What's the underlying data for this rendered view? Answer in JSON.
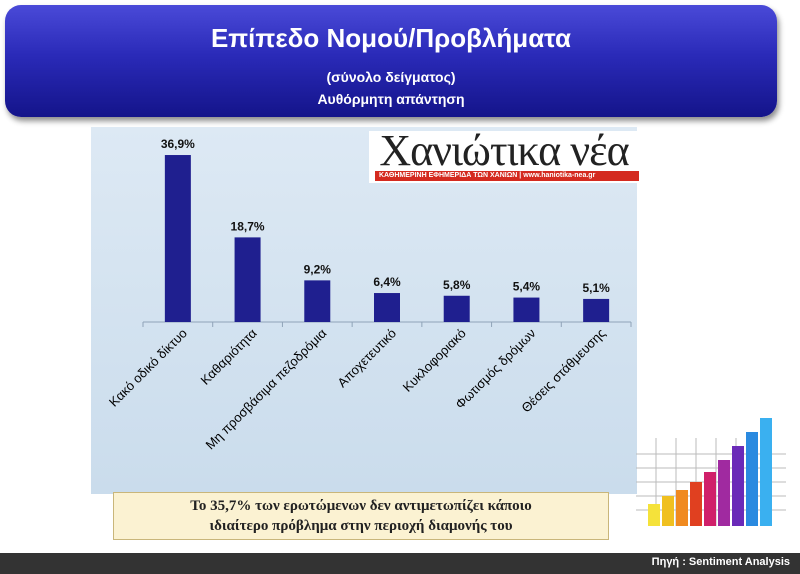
{
  "header": {
    "title": "Επίπεδο Νομού/Προβλήματα",
    "subtitle1": "(σύνολο δείγματος)",
    "subtitle2": "Αυθόρμητη απάντηση"
  },
  "logo": {
    "name": "Χανιώτικα νέα",
    "tagline": "ΚΑΘΗΜΕΡΙΝΗ ΕΦΗΜΕΡΙΔΑ ΤΩΝ ΧΑΝΙΩΝ  |  www.haniotika-nea.gr"
  },
  "chart_data": {
    "type": "bar",
    "categories": [
      "Κακό οδικό δίκτυο",
      "Καθαριότητα",
      "Μη προσβάσιμα πεζοδρόμια",
      "Αποχετευτικό",
      "Κυκλοφοριακό",
      "Φωτισμός δρόμων",
      "Θέσεις στάθμευσης"
    ],
    "values": [
      36.9,
      18.7,
      9.2,
      6.4,
      5.8,
      5.4,
      5.1
    ],
    "value_labels": [
      "36,9%",
      "18,7%",
      "9,2%",
      "6,4%",
      "5,8%",
      "5,4%",
      "5,1%"
    ],
    "ylim": [
      0,
      40
    ],
    "bar_color": "#1f1f8f",
    "grid": false,
    "legend": false
  },
  "note": {
    "line1": "Το 35,7% των ερωτώμενων δεν αντιμετωπίζει κάποιο",
    "line2": "ιδιαίτερο πρόβλημα στην περιοχή διαμονής του"
  },
  "footer": {
    "source": "Πηγή : Sentiment Analysis"
  },
  "decoration": {
    "icon": "bar-chart-icon"
  }
}
